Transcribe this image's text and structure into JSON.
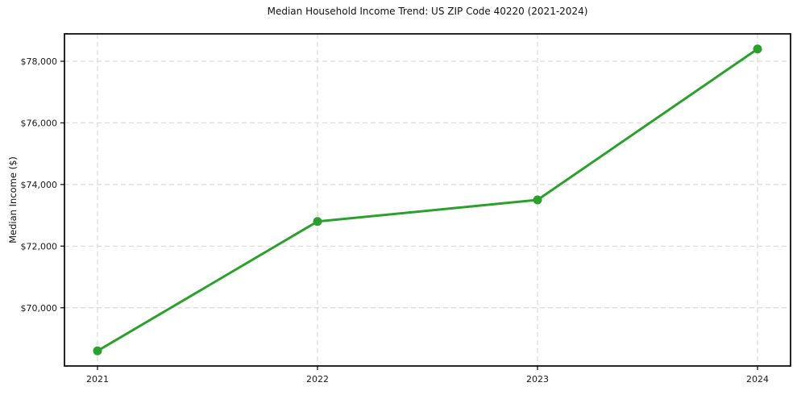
{
  "chart_data": {
    "type": "line",
    "title": "Median Household Income Trend: US ZIP Code 40220 (2021-2024)",
    "xlabel": "",
    "ylabel": "Median Income ($)",
    "categories": [
      "2021",
      "2022",
      "2023",
      "2024"
    ],
    "series": [
      {
        "name": "Median Household Income",
        "values": [
          68600,
          72800,
          73500,
          78400
        ]
      }
    ],
    "y_ticks": [
      {
        "value": 70000,
        "label": "$70,000"
      },
      {
        "value": 72000,
        "label": "$72,000"
      },
      {
        "value": 74000,
        "label": "$74,000"
      },
      {
        "value": 76000,
        "label": "$76,000"
      },
      {
        "value": 78000,
        "label": "$78,000"
      }
    ],
    "ylim": [
      68110,
      78890
    ],
    "grid": "dashed-both-axes",
    "legend_position": "none",
    "line_color": "#2ca02c",
    "marker": "circle",
    "grid_color": "#d9d9d9",
    "spine_color": "#000000",
    "background_color": "#ffffff"
  }
}
